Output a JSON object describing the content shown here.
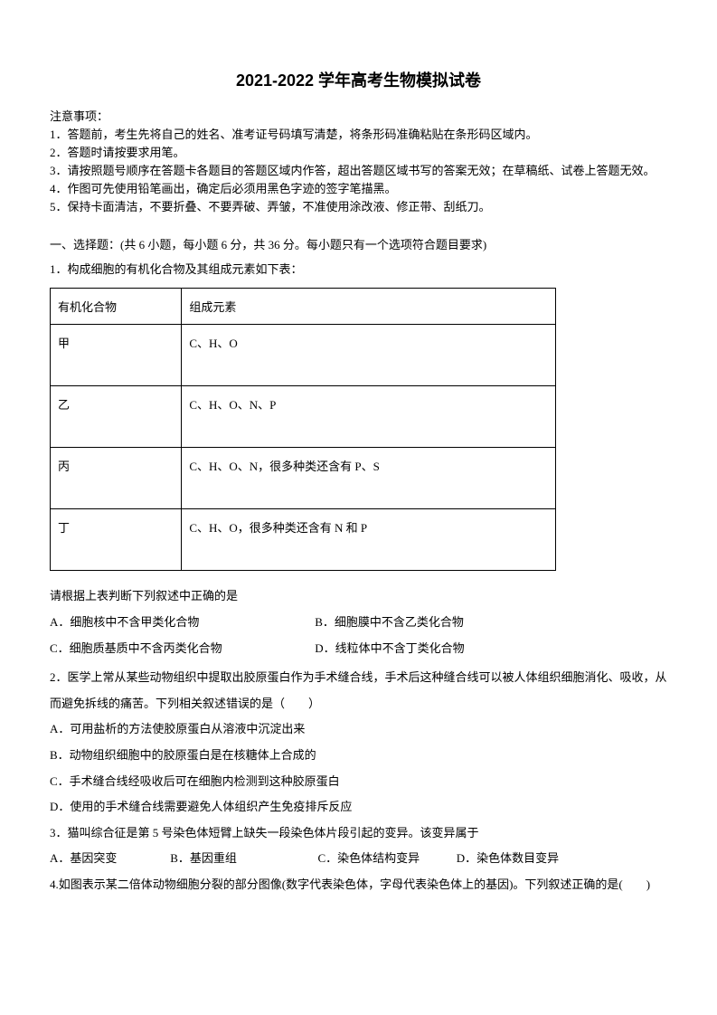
{
  "title": "2021-2022 学年高考生物模拟试卷",
  "instructions": {
    "header": "注意事项：",
    "items": [
      "1．答题前，考生先将自己的姓名、准考证号码填写清楚，将条形码准确粘贴在条形码区域内。",
      "2．答题时请按要求用笔。",
      "3．请按照题号顺序在答题卡各题目的答题区域内作答，超出答题区域书写的答案无效；在草稿纸、试卷上答题无效。",
      "4．作图可先使用铅笔画出，确定后必须用黑色字迹的签字笔描黑。",
      "5．保持卡面清洁，不要折叠、不要弄破、弄皱，不准使用涂改液、修正带、刮纸刀。"
    ]
  },
  "section1": {
    "header": "一、选择题：(共 6 小题，每小题 6 分，共 36 分。每小题只有一个选项符合题目要求)"
  },
  "q1": {
    "stem": "1．构成细胞的有机化合物及其组成元素如下表：",
    "table": {
      "header_col1": "有机化合物",
      "header_col2": "组成元素",
      "rows": [
        {
          "c1": "甲",
          "c2": "C、H、O"
        },
        {
          "c1": "乙",
          "c2": "C、H、O、N、P"
        },
        {
          "c1": "丙",
          "c2": "C、H、O、N，很多种类还含有 P、S"
        },
        {
          "c1": "丁",
          "c2": "C、H、O，很多种类还含有 N 和 P"
        }
      ]
    },
    "prompt": "请根据上表判断下列叙述中正确的是",
    "options": {
      "a": "A．细胞核中不含甲类化合物",
      "b": "B．细胞膜中不含乙类化合物",
      "c": "C．细胞质基质中不含丙类化合物",
      "d": "D．线粒体中不含丁类化合物"
    }
  },
  "q2": {
    "stem": "2．医学上常从某些动物组织中提取出胶原蛋白作为手术缝合线，手术后这种缝合线可以被人体组织细胞消化、吸收，从而避免拆线的痛苦。下列相关叙述错误的是（　　）",
    "options": {
      "a": "A．可用盐析的方法使胶原蛋白从溶液中沉淀出来",
      "b": "B．动物组织细胞中的胶原蛋白是在核糖体上合成的",
      "c": "C．手术缝合线经吸收后可在细胞内检测到这种胶原蛋白",
      "d": "D．使用的手术缝合线需要避免人体组织产生免疫排斥反应"
    }
  },
  "q3": {
    "stem": "3．猫叫综合征是第 5 号染色体短臂上缺失一段染色体片段引起的变异。该变异属于",
    "options": {
      "a": "A．基因突变",
      "b": "B．基因重组",
      "c": "C．染色体结构变异",
      "d": "D．染色体数目变异"
    }
  },
  "q4": {
    "stem": "4.如图表示某二倍体动物细胞分裂的部分图像(数字代表染色体，字母代表染色体上的基因)。下列叙述正确的是(　　)"
  }
}
